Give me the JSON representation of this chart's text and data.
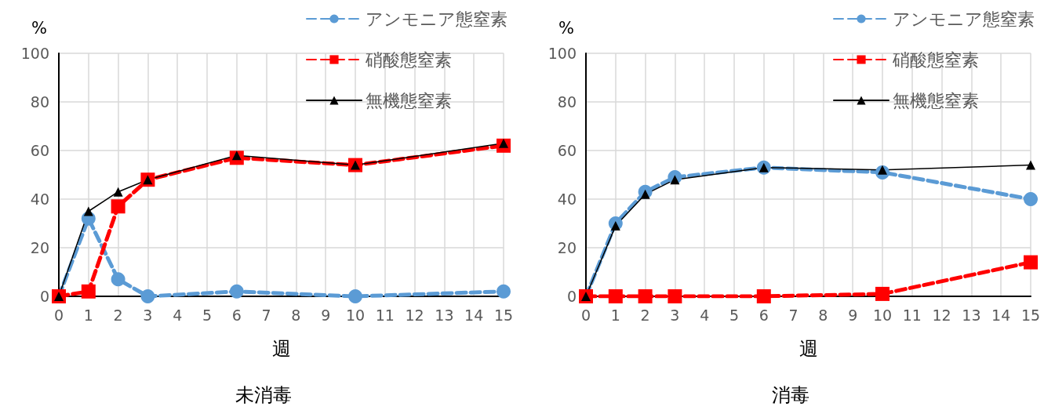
{
  "chart_data": [
    {
      "type": "line",
      "title": "未消毒",
      "xlabel": "週",
      "ylabel": "%",
      "x": [
        0,
        1,
        2,
        3,
        6,
        10,
        15
      ],
      "xlim": [
        0,
        15
      ],
      "xticks": [
        0,
        1,
        2,
        3,
        4,
        5,
        6,
        7,
        8,
        9,
        10,
        11,
        12,
        13,
        14,
        15
      ],
      "ylim": [
        0,
        100
      ],
      "yticks": [
        0,
        20,
        40,
        60,
        80,
        100
      ],
      "grid": true,
      "legend": "top right",
      "series": [
        {
          "name": "アンモニア態窒素",
          "color": "#5b9bd5",
          "marker": "circle",
          "line_style": "dashed",
          "values": [
            0,
            32,
            7,
            0,
            2,
            0,
            2
          ]
        },
        {
          "name": "硝酸態窒素",
          "color": "#ff0000",
          "marker": "square",
          "line_style": "dashed",
          "values": [
            0,
            2,
            37,
            48,
            57,
            54,
            62
          ]
        },
        {
          "name": "無機態窒素",
          "color": "#000000",
          "marker": "triangle",
          "line_style": "solid",
          "values": [
            0,
            35,
            43,
            48,
            58,
            54,
            63
          ]
        }
      ]
    },
    {
      "type": "line",
      "title": "消毒",
      "xlabel": "週",
      "ylabel": "%",
      "x": [
        0,
        1,
        2,
        3,
        6,
        10,
        15
      ],
      "xlim": [
        0,
        15
      ],
      "xticks": [
        0,
        1,
        2,
        3,
        4,
        5,
        6,
        7,
        8,
        9,
        10,
        11,
        12,
        13,
        14,
        15
      ],
      "ylim": [
        0,
        100
      ],
      "yticks": [
        0,
        20,
        40,
        60,
        80,
        100
      ],
      "grid": true,
      "legend": "top right",
      "series": [
        {
          "name": "アンモニア態窒素",
          "color": "#5b9bd5",
          "marker": "circle",
          "line_style": "dashed",
          "values": [
            0,
            30,
            43,
            49,
            53,
            51,
            40
          ]
        },
        {
          "name": "硝酸態窒素",
          "color": "#ff0000",
          "marker": "square",
          "line_style": "dashed",
          "values": [
            0,
            0,
            0,
            0,
            0,
            1,
            14
          ]
        },
        {
          "name": "無機態窒素",
          "color": "#000000",
          "marker": "triangle",
          "line_style": "solid",
          "values": [
            0,
            29,
            42,
            48,
            53,
            52,
            54
          ]
        }
      ]
    }
  ]
}
